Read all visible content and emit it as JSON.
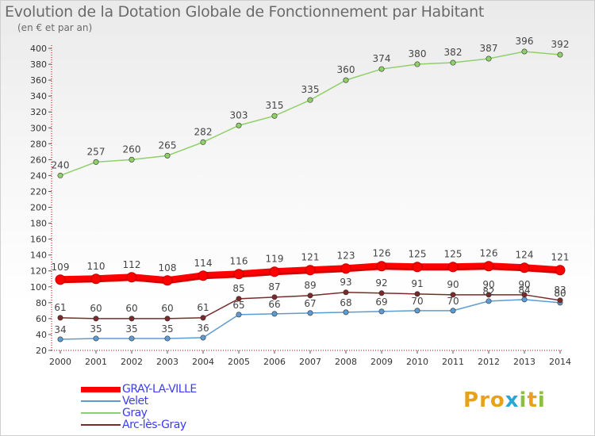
{
  "title": "Evolution de la Dotation Globale de Fonctionnement par Habitant",
  "subtitle": "(en € et par an)",
  "logo": {
    "text": "Proxiti",
    "letters": [
      {
        "ch": "P",
        "color": "#e8a21a"
      },
      {
        "ch": "r",
        "color": "#e8a21a"
      },
      {
        "ch": "o",
        "color": "#e8a21a"
      },
      {
        "ch": "x",
        "color": "#2aa7d6"
      },
      {
        "ch": "i",
        "color": "#8cbf3f"
      },
      {
        "ch": "t",
        "color": "#e8a21a"
      },
      {
        "ch": "i",
        "color": "#8cbf3f"
      }
    ]
  },
  "chart_data": {
    "type": "line",
    "title": "Evolution de la Dotation Globale de Fonctionnement par Habitant",
    "ylabel": "(en € et par an)",
    "x": [
      2000,
      2001,
      2002,
      2003,
      2004,
      2005,
      2006,
      2007,
      2008,
      2009,
      2010,
      2011,
      2012,
      2013,
      2014
    ],
    "ylim": [
      20,
      400
    ],
    "yticks": [
      20,
      40,
      60,
      80,
      100,
      120,
      140,
      160,
      180,
      200,
      220,
      240,
      260,
      280,
      300,
      320,
      340,
      360,
      380,
      400
    ],
    "series": [
      {
        "name": "GRAY-LA-VILLE",
        "color": "#ff0000",
        "values": [
          109,
          110,
          112,
          108,
          114,
          116,
          119,
          121,
          123,
          126,
          125,
          125,
          126,
          124,
          121
        ]
      },
      {
        "name": "Velet",
        "color": "#5e9bd0",
        "values": [
          34,
          35,
          35,
          35,
          36,
          65,
          66,
          67,
          68,
          69,
          70,
          70,
          82,
          84,
          80
        ]
      },
      {
        "name": "Gray",
        "color": "#90d06a",
        "values": [
          240,
          257,
          260,
          265,
          282,
          303,
          315,
          335,
          360,
          374,
          380,
          382,
          387,
          396,
          392
        ]
      },
      {
        "name": "Arc-lès-Gray",
        "color": "#7a2a2a",
        "values": [
          61,
          60,
          60,
          60,
          61,
          85,
          87,
          89,
          93,
          92,
          91,
          90,
          90,
          90,
          83
        ]
      }
    ],
    "data_labels": {
      "GRAY-LA-VILLE": [
        "109",
        "110",
        "112",
        "108",
        "114",
        "116",
        "119",
        "121",
        "123",
        "126",
        "125",
        "125",
        "126",
        "124",
        "121"
      ],
      "Velet": [
        "34",
        "35",
        "35",
        "35",
        "36",
        "65",
        "66",
        "67",
        "68",
        "69",
        "70",
        "70",
        "82",
        "84",
        "80"
      ],
      "Gray": [
        "240",
        "257",
        "260",
        "265",
        "282",
        "303",
        "315",
        "335",
        "360",
        "374",
        "380",
        "382",
        "387",
        "396",
        "392"
      ],
      "Arc-lès-Gray": [
        "61",
        "60",
        "60",
        "60",
        "61",
        "85",
        "87",
        "89",
        "93",
        "92",
        "91",
        "90",
        "90",
        "90",
        "83"
      ]
    },
    "legend_position": "bottom-left",
    "grid": false
  }
}
